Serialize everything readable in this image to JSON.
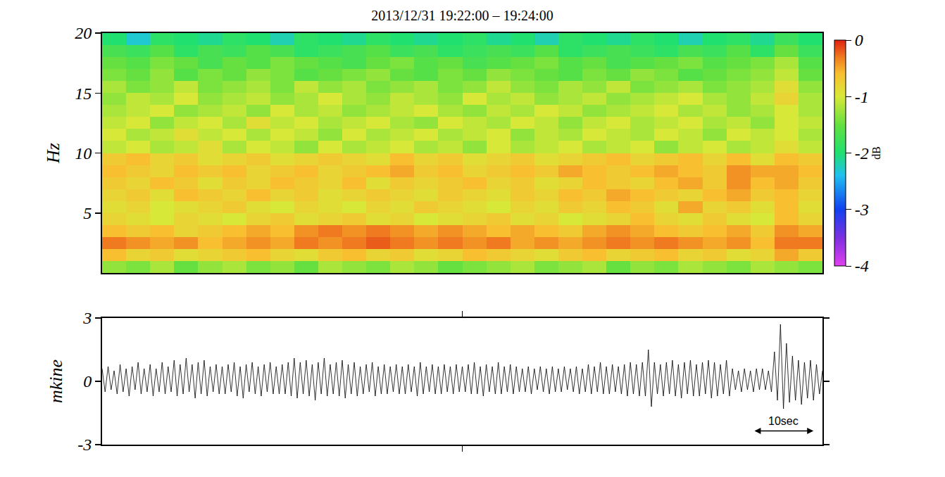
{
  "chart_data": [
    {
      "type": "heatmap",
      "title": "2013/12/31 19:22:00 – 19:24:00",
      "y_label": "Hz",
      "colorbar_title": "dB",
      "xlim": [
        0,
        120
      ],
      "ylim": [
        0,
        20
      ],
      "yticks": [
        5,
        10,
        15,
        20
      ],
      "zlim": [
        -4,
        0
      ],
      "zticks": [
        0,
        -1,
        -2,
        -3,
        -4
      ],
      "tick_labels": "y",
      "grid": false,
      "x": [
        2,
        6,
        10,
        14,
        18,
        22,
        26,
        30,
        34,
        38,
        42,
        46,
        50,
        54,
        58,
        62,
        66,
        70,
        74,
        78,
        82,
        86,
        90,
        94,
        98,
        102,
        106,
        110,
        114,
        118
      ],
      "y": [
        0.5,
        1.5,
        2.5,
        3.5,
        4.5,
        5.5,
        6.5,
        7.5,
        8.5,
        9.5,
        10.5,
        11.5,
        12.5,
        13.5,
        14.5,
        15.5,
        16.5,
        17.5,
        18.5,
        19.5
      ],
      "z": [
        [
          -1.3,
          -1.4,
          -1.2,
          -1.5,
          -1.3,
          -1.2,
          -1.4,
          -1.3,
          -1.5,
          -1.2,
          -1.3,
          -1.4,
          -1.2,
          -1.3,
          -1.5,
          -1.4,
          -1.3,
          -1.2,
          -1.4,
          -1.3,
          -1.2,
          -1.5,
          -1.3,
          -1.4,
          -1.2,
          -1.3,
          -1.4,
          -1.2,
          -1.3,
          -1.4
        ],
        [
          -0.6,
          -0.8,
          -0.7,
          -0.9,
          -0.8,
          -0.7,
          -0.6,
          -0.8,
          -0.9,
          -0.7,
          -0.6,
          -0.8,
          -0.7,
          -0.9,
          -0.8,
          -0.6,
          -0.7,
          -0.8,
          -0.9,
          -0.7,
          -0.6,
          -0.8,
          -0.7,
          -0.6,
          -0.8,
          -0.7,
          -0.9,
          -0.8,
          -0.5,
          -0.7
        ],
        [
          -0.3,
          -0.4,
          -0.5,
          -0.4,
          -0.6,
          -0.5,
          -0.4,
          -0.5,
          -0.3,
          -0.4,
          -0.3,
          -0.2,
          -0.3,
          -0.4,
          -0.3,
          -0.4,
          -0.3,
          -0.5,
          -0.4,
          -0.5,
          -0.4,
          -0.3,
          -0.4,
          -0.3,
          -0.4,
          -0.5,
          -0.4,
          -0.6,
          -0.3,
          -0.3
        ],
        [
          -0.6,
          -0.7,
          -0.6,
          -0.8,
          -0.7,
          -0.6,
          -0.5,
          -0.6,
          -0.4,
          -0.3,
          -0.4,
          -0.3,
          -0.4,
          -0.5,
          -0.4,
          -0.5,
          -0.6,
          -0.5,
          -0.6,
          -0.7,
          -0.5,
          -0.4,
          -0.5,
          -0.6,
          -0.7,
          -0.6,
          -0.5,
          -0.7,
          -0.4,
          -0.5
        ],
        [
          -0.8,
          -0.9,
          -1.0,
          -0.8,
          -0.9,
          -1.0,
          -0.8,
          -0.7,
          -0.9,
          -0.8,
          -0.7,
          -0.9,
          -0.8,
          -1.0,
          -0.9,
          -0.8,
          -0.7,
          -0.9,
          -0.8,
          -1.0,
          -0.9,
          -0.8,
          -0.6,
          -0.8,
          -0.9,
          -0.7,
          -0.9,
          -1.0,
          -0.6,
          -0.8
        ],
        [
          -0.9,
          -0.8,
          -1.0,
          -0.9,
          -0.8,
          -0.7,
          -0.9,
          -1.0,
          -0.8,
          -0.9,
          -1.0,
          -0.8,
          -0.9,
          -0.7,
          -0.8,
          -0.9,
          -1.0,
          -0.8,
          -0.9,
          -0.7,
          -0.8,
          -0.6,
          -0.7,
          -0.9,
          -0.5,
          -0.8,
          -0.7,
          -0.9,
          -0.6,
          -0.9
        ],
        [
          -0.8,
          -0.7,
          -0.9,
          -0.6,
          -0.7,
          -0.8,
          -0.6,
          -0.8,
          -0.7,
          -0.9,
          -0.8,
          -0.7,
          -0.8,
          -0.9,
          -0.7,
          -0.8,
          -0.9,
          -0.7,
          -0.8,
          -0.6,
          -0.7,
          -0.5,
          -0.6,
          -0.7,
          -0.8,
          -0.6,
          -0.5,
          -0.7,
          -0.6,
          -0.8
        ],
        [
          -0.7,
          -0.8,
          -0.6,
          -0.7,
          -0.9,
          -0.7,
          -0.8,
          -0.6,
          -0.7,
          -0.8,
          -0.6,
          -0.9,
          -0.7,
          -0.8,
          -0.7,
          -0.6,
          -0.8,
          -0.7,
          -0.9,
          -0.8,
          -0.6,
          -0.7,
          -0.8,
          -0.6,
          -0.5,
          -0.7,
          -0.4,
          -0.6,
          -0.5,
          -0.7
        ],
        [
          -0.6,
          -0.7,
          -0.8,
          -0.6,
          -0.7,
          -0.6,
          -0.8,
          -0.7,
          -0.6,
          -0.8,
          -0.7,
          -0.6,
          -0.5,
          -0.7,
          -0.6,
          -0.8,
          -0.7,
          -0.6,
          -0.7,
          -0.5,
          -0.6,
          -0.7,
          -0.6,
          -0.5,
          -0.6,
          -0.7,
          -0.4,
          -0.5,
          -0.5,
          -0.6
        ],
        [
          -0.7,
          -0.6,
          -0.8,
          -0.7,
          -0.9,
          -0.8,
          -0.7,
          -0.9,
          -0.8,
          -0.7,
          -0.8,
          -0.9,
          -0.6,
          -0.8,
          -0.7,
          -0.9,
          -0.8,
          -0.7,
          -0.9,
          -0.8,
          -0.7,
          -0.6,
          -0.8,
          -0.7,
          -0.6,
          -0.8,
          -0.6,
          -0.9,
          -0.6,
          -0.7
        ],
        [
          -1.1,
          -1.0,
          -1.2,
          -1.1,
          -0.9,
          -1.2,
          -1.0,
          -1.1,
          -1.3,
          -1.0,
          -1.2,
          -1.1,
          -1.0,
          -1.2,
          -1.1,
          -1.3,
          -1.0,
          -1.2,
          -1.1,
          -1.0,
          -1.2,
          -1.1,
          -1.0,
          -1.3,
          -1.1,
          -1.0,
          -1.2,
          -1.1,
          -0.9,
          -1.1
        ],
        [
          -1.0,
          -1.2,
          -1.1,
          -0.9,
          -1.1,
          -1.0,
          -1.2,
          -1.0,
          -1.1,
          -1.3,
          -1.0,
          -1.2,
          -1.1,
          -1.0,
          -1.2,
          -1.1,
          -1.0,
          -1.3,
          -1.1,
          -1.2,
          -1.0,
          -1.1,
          -1.2,
          -1.0,
          -1.1,
          -1.3,
          -1.0,
          -1.1,
          -1.0,
          -1.2
        ],
        [
          -1.1,
          -1.0,
          -1.3,
          -1.1,
          -1.0,
          -1.2,
          -0.9,
          -1.1,
          -1.0,
          -1.2,
          -1.1,
          -1.0,
          -1.2,
          -1.3,
          -1.0,
          -1.1,
          -1.2,
          -1.0,
          -1.1,
          -1.3,
          -1.1,
          -1.0,
          -1.2,
          -1.1,
          -1.0,
          -1.2,
          -1.1,
          -1.3,
          -1.0,
          -1.1
        ],
        [
          -1.2,
          -1.1,
          -1.0,
          -1.3,
          -1.2,
          -1.1,
          -1.3,
          -1.0,
          -1.2,
          -1.1,
          -1.3,
          -1.2,
          -1.1,
          -1.0,
          -1.2,
          -1.3,
          -1.1,
          -1.2,
          -1.0,
          -1.1,
          -1.3,
          -1.2,
          -1.1,
          -1.0,
          -1.2,
          -1.1,
          -1.3,
          -1.2,
          -1.0,
          -1.2
        ],
        [
          -1.3,
          -1.1,
          -1.2,
          -1.0,
          -1.3,
          -1.2,
          -1.1,
          -1.3,
          -1.2,
          -1.0,
          -1.2,
          -1.3,
          -1.1,
          -1.2,
          -1.3,
          -1.0,
          -1.2,
          -1.1,
          -1.3,
          -1.2,
          -1.1,
          -1.3,
          -1.2,
          -1.1,
          -1.0,
          -1.2,
          -1.3,
          -1.1,
          -0.8,
          -1.2
        ],
        [
          -1.2,
          -1.4,
          -1.3,
          -1.1,
          -1.4,
          -1.3,
          -1.2,
          -1.4,
          -1.1,
          -1.3,
          -1.2,
          -1.4,
          -1.3,
          -1.2,
          -1.4,
          -1.3,
          -1.1,
          -1.3,
          -1.4,
          -1.2,
          -1.3,
          -1.1,
          -1.4,
          -1.3,
          -1.2,
          -1.4,
          -1.3,
          -1.2,
          -0.9,
          -1.3
        ],
        [
          -1.4,
          -1.5,
          -1.3,
          -1.6,
          -1.4,
          -1.5,
          -1.3,
          -1.4,
          -1.6,
          -1.5,
          -1.4,
          -1.3,
          -1.5,
          -1.6,
          -1.4,
          -1.5,
          -1.3,
          -1.4,
          -1.5,
          -1.6,
          -1.4,
          -1.5,
          -1.3,
          -1.4,
          -1.6,
          -1.5,
          -1.4,
          -1.3,
          -1.1,
          -1.5
        ],
        [
          -1.5,
          -1.6,
          -1.4,
          -1.5,
          -1.7,
          -1.5,
          -1.6,
          -1.4,
          -1.5,
          -1.6,
          -1.7,
          -1.5,
          -1.4,
          -1.6,
          -1.5,
          -1.7,
          -1.6,
          -1.5,
          -1.4,
          -1.6,
          -1.5,
          -1.7,
          -1.6,
          -1.5,
          -1.4,
          -1.6,
          -1.5,
          -1.4,
          -1.2,
          -1.6
        ],
        [
          -1.7,
          -1.8,
          -1.6,
          -1.9,
          -1.7,
          -1.8,
          -1.6,
          -1.7,
          -1.9,
          -1.8,
          -1.7,
          -1.6,
          -1.8,
          -1.7,
          -1.9,
          -1.8,
          -1.7,
          -1.8,
          -1.6,
          -1.9,
          -1.8,
          -1.7,
          -1.8,
          -1.9,
          -1.7,
          -1.8,
          -1.6,
          -1.9,
          -1.5,
          -1.8
        ],
        [
          -2.0,
          -2.3,
          -1.9,
          -2.0,
          -2.1,
          -1.9,
          -2.0,
          -2.2,
          -1.9,
          -2.0,
          -2.1,
          -1.9,
          -2.0,
          -2.1,
          -2.0,
          -1.9,
          -2.1,
          -2.0,
          -2.2,
          -1.9,
          -2.0,
          -2.1,
          -1.9,
          -2.0,
          -2.2,
          -2.0,
          -1.9,
          -2.1,
          -1.8,
          -2.0
        ]
      ]
    },
    {
      "type": "line",
      "y_label": "mkine",
      "color": "#000000",
      "xlim": [
        0,
        120
      ],
      "xticks": [
        60
      ],
      "ylim": [
        -3,
        3
      ],
      "yticks": [
        -3,
        0,
        3
      ],
      "tick_labels": "y",
      "grid": false,
      "annotation": {
        "text": "10sec",
        "x0": 108.5,
        "x1": 118.5
      },
      "x": [
        0,
        0.5,
        1,
        1.5,
        2,
        2.5,
        3,
        3.5,
        4,
        4.5,
        5,
        5.5,
        6,
        6.5,
        7,
        7.5,
        8,
        8.5,
        9,
        9.5,
        10,
        10.5,
        11,
        11.5,
        12,
        12.5,
        13,
        13.5,
        14,
        14.5,
        15,
        15.5,
        16,
        16.5,
        17,
        17.5,
        18,
        18.5,
        19,
        19.5,
        20,
        20.5,
        21,
        21.5,
        22,
        22.5,
        23,
        23.5,
        24,
        24.5,
        25,
        25.5,
        26,
        26.5,
        27,
        27.5,
        28,
        28.5,
        29,
        29.5,
        30,
        30.5,
        31,
        31.5,
        32,
        32.5,
        33,
        33.5,
        34,
        34.5,
        35,
        35.5,
        36,
        36.5,
        37,
        37.5,
        38,
        38.5,
        39,
        39.5,
        40,
        40.5,
        41,
        41.5,
        42,
        42.5,
        43,
        43.5,
        44,
        44.5,
        45,
        45.5,
        46,
        46.5,
        47,
        47.5,
        48,
        48.5,
        49,
        49.5,
        50,
        50.5,
        51,
        51.5,
        52,
        52.5,
        53,
        53.5,
        54,
        54.5,
        55,
        55.5,
        56,
        56.5,
        57,
        57.5,
        58,
        58.5,
        59,
        59.5,
        60,
        60.5,
        61,
        61.5,
        62,
        62.5,
        63,
        63.5,
        64,
        64.5,
        65,
        65.5,
        66,
        66.5,
        67,
        67.5,
        68,
        68.5,
        69,
        69.5,
        70,
        70.5,
        71,
        71.5,
        72,
        72.5,
        73,
        73.5,
        74,
        74.5,
        75,
        75.5,
        76,
        76.5,
        77,
        77.5,
        78,
        78.5,
        79,
        79.5,
        80,
        80.5,
        81,
        81.5,
        82,
        82.5,
        83,
        83.5,
        84,
        84.5,
        85,
        85.5,
        86,
        86.5,
        87,
        87.5,
        88,
        88.5,
        89,
        89.5,
        90,
        90.5,
        91,
        91.5,
        92,
        92.5,
        93,
        93.5,
        94,
        94.5,
        95,
        95.5,
        96,
        96.5,
        97,
        97.5,
        98,
        98.5,
        99,
        99.5,
        100,
        100.5,
        101,
        101.5,
        102,
        102.5,
        103,
        103.5,
        104,
        104.5,
        105,
        105.5,
        106,
        106.5,
        107,
        107.5,
        108,
        108.5,
        109,
        109.5,
        110,
        110.5,
        111,
        111.5,
        112,
        112.5,
        113,
        113.5,
        114,
        114.5,
        115,
        115.5,
        116,
        116.5,
        117,
        117.5,
        118,
        118.5,
        119,
        119.5,
        120
      ],
      "values": [
        0.6,
        -0.5,
        0.7,
        -0.4,
        0.5,
        -0.6,
        0.8,
        -0.5,
        0.6,
        -0.7,
        0.7,
        -0.4,
        0.9,
        -0.6,
        0.6,
        -0.5,
        0.8,
        -0.7,
        0.6,
        -0.5,
        0.9,
        -0.6,
        0.7,
        -0.5,
        1.0,
        -0.7,
        0.8,
        -0.6,
        1.1,
        -0.5,
        0.8,
        -0.8,
        0.9,
        -0.6,
        1.0,
        -0.7,
        0.7,
        -0.5,
        0.8,
        -0.6,
        0.7,
        -0.6,
        0.8,
        -0.5,
        0.9,
        -0.7,
        0.7,
        -0.8,
        0.8,
        -0.5,
        0.9,
        -0.6,
        0.7,
        -0.7,
        0.8,
        -0.5,
        0.9,
        -0.6,
        0.7,
        -0.6,
        0.8,
        -0.6,
        0.9,
        -0.7,
        1.1,
        -0.8,
        0.9,
        -0.6,
        1.0,
        -0.7,
        0.8,
        -0.9,
        0.9,
        -0.6,
        1.1,
        -0.7,
        0.8,
        -0.6,
        0.9,
        -0.7,
        1.0,
        -0.8,
        0.8,
        -0.6,
        0.9,
        -0.7,
        0.7,
        -0.6,
        0.8,
        -0.5,
        0.9,
        -0.7,
        0.7,
        -0.6,
        0.8,
        -0.6,
        0.7,
        -0.5,
        0.8,
        -0.6,
        0.7,
        -0.6,
        0.8,
        -0.5,
        0.7,
        -0.7,
        0.9,
        -0.6,
        0.7,
        -0.5,
        0.8,
        -0.6,
        0.7,
        -0.6,
        0.8,
        -0.5,
        0.7,
        -0.6,
        0.8,
        -0.5,
        0.7,
        -0.5,
        0.8,
        -0.6,
        0.9,
        -0.6,
        0.7,
        -0.7,
        0.8,
        -0.5,
        0.7,
        -0.6,
        0.9,
        -0.6,
        0.7,
        -0.5,
        0.8,
        -0.6,
        0.7,
        -0.5,
        0.6,
        -0.5,
        0.7,
        -0.6,
        0.6,
        -0.4,
        0.7,
        -0.5,
        0.6,
        -0.6,
        0.7,
        -0.5,
        0.6,
        -0.5,
        0.7,
        -0.4,
        0.6,
        -0.5,
        0.7,
        -0.6,
        0.6,
        -0.5,
        0.8,
        -0.6,
        0.7,
        -0.5,
        0.9,
        -0.6,
        0.7,
        -0.6,
        0.8,
        -0.5,
        0.7,
        -0.6,
        0.8,
        -0.7,
        0.9,
        -0.6,
        0.8,
        -0.7,
        0.9,
        -0.7,
        1.5,
        -1.2,
        0.9,
        -0.6,
        0.8,
        -0.7,
        0.9,
        -0.6,
        1.0,
        -0.7,
        0.8,
        -0.8,
        0.9,
        -0.6,
        1.0,
        -0.7,
        0.8,
        -0.7,
        0.9,
        -0.6,
        1.0,
        -0.8,
        0.9,
        -0.7,
        0.8,
        -0.6,
        1.0,
        -0.7,
        0.6,
        -0.4,
        0.5,
        -0.5,
        0.6,
        -0.4,
        0.5,
        -0.5,
        0.6,
        -0.4,
        0.6,
        -0.4,
        0.5,
        -0.5,
        1.4,
        -0.9,
        2.7,
        -1.3,
        1.8,
        -1.0,
        1.2,
        -0.9,
        1.0,
        -1.1,
        0.9,
        -0.8,
        1.0,
        -0.9,
        0.8,
        -0.6,
        0.5
      ]
    }
  ]
}
